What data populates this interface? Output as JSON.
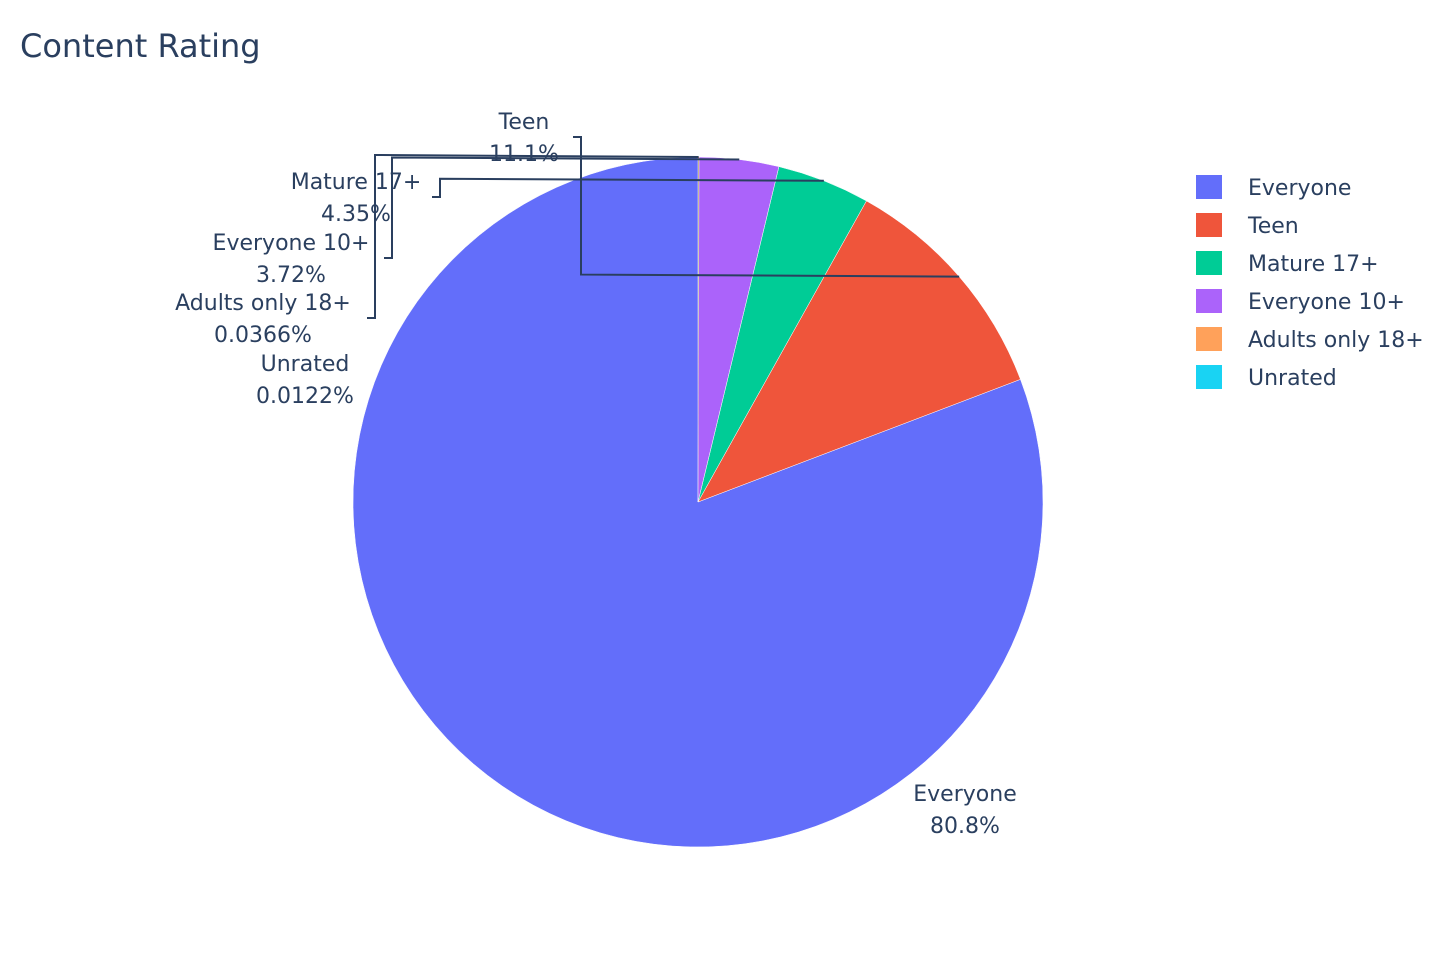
{
  "chart_data": {
    "type": "pie",
    "title": "Content Rating",
    "legend_position": "right",
    "slices": [
      {
        "label": "Everyone",
        "percent_text": "80.8%",
        "value": 80.8,
        "color": "#636efa"
      },
      {
        "label": "Teen",
        "percent_text": "11.1%",
        "value": 11.1,
        "color": "#ef553b"
      },
      {
        "label": "Mature 17+",
        "percent_text": "4.35%",
        "value": 4.35,
        "color": "#00cc96"
      },
      {
        "label": "Everyone 10+",
        "percent_text": "3.72%",
        "value": 3.72,
        "color": "#ab63fa"
      },
      {
        "label": "Adults only 18+",
        "percent_text": "0.0366%",
        "value": 0.0366,
        "color": "#ffa15a"
      },
      {
        "label": "Unrated",
        "percent_text": "0.0122%",
        "value": 0.0122,
        "color": "#19d3f3"
      }
    ],
    "start_angle_deg": 90,
    "direction": "counterclockwise"
  }
}
